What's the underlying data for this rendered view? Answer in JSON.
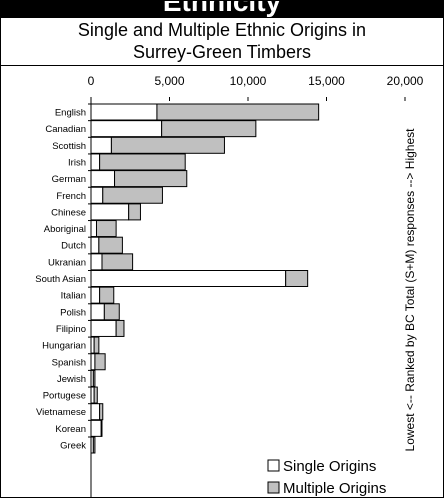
{
  "header": {
    "banner": "Ethnicity",
    "title_line1": "Single and Multiple Ethnic Origins in",
    "title_line2": "Surrey-Green Timbers"
  },
  "colors": {
    "single": "#ffffff",
    "multiple": "#c0c0c0",
    "outline": "#000000",
    "banner_bg": "#000000"
  },
  "chart_data": {
    "type": "bar",
    "orientation": "horizontal",
    "stacked": true,
    "xlim": [
      0,
      20000
    ],
    "xticks": [
      0,
      5000,
      10000,
      15000,
      20000
    ],
    "xtick_labels": [
      "0",
      "5,000",
      "10,000",
      "15,000",
      "20,000"
    ],
    "tick_position": "top",
    "grid": false,
    "legend_position": "bottom-right",
    "side_label": "Lowest <-- Ranked by BC Total (S+M) responses --> Highest",
    "categories": [
      "English",
      "Canadian",
      "Scottish",
      "Irish",
      "German",
      "French",
      "Chinese",
      "Aboriginal",
      "Dutch",
      "Ukranian",
      "South Asian",
      "Italian",
      "Polish",
      "Filipino",
      "Hungarian",
      "Spanish",
      "Jewish",
      "Portugese",
      "Vietnamese",
      "Korean",
      "Greek"
    ],
    "series": [
      {
        "name": "Single Origins",
        "values": [
          4200,
          4500,
          1300,
          550,
          1500,
          750,
          2400,
          350,
          500,
          700,
          12400,
          550,
          850,
          1600,
          200,
          250,
          150,
          200,
          550,
          650,
          150
        ]
      },
      {
        "name": "Multiple Origins",
        "values": [
          10300,
          6000,
          7200,
          5450,
          4600,
          3800,
          750,
          1250,
          1500,
          1950,
          1400,
          900,
          950,
          500,
          300,
          650,
          100,
          200,
          200,
          50,
          100
        ]
      }
    ]
  }
}
